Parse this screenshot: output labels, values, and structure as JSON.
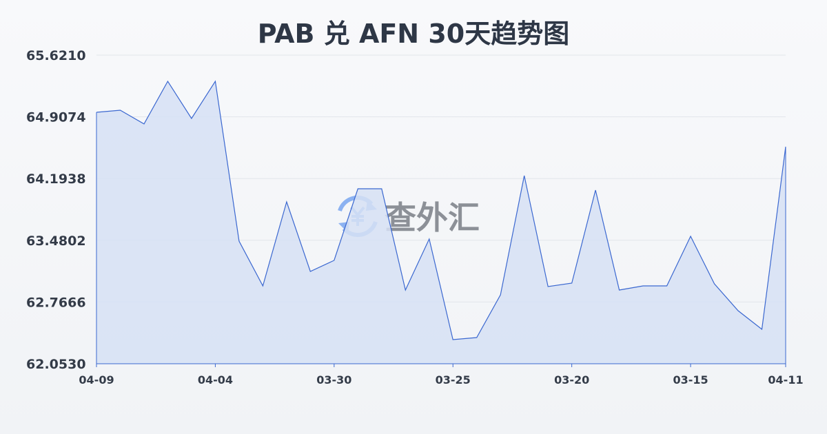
{
  "chart_data": {
    "type": "area",
    "title": "PAB 兑 AFN 30天趋势图",
    "xlabel": "",
    "ylabel": "",
    "ylim": [
      62.053,
      65.621
    ],
    "y_ticks": [
      "65.6210",
      "64.9074",
      "64.1938",
      "63.4802",
      "62.7666",
      "62.0530"
    ],
    "x_tick_labels": [
      {
        "index": 0,
        "label": "04-09"
      },
      {
        "index": 5,
        "label": "04-04"
      },
      {
        "index": 10,
        "label": "03-30"
      },
      {
        "index": 15,
        "label": "03-25"
      },
      {
        "index": 20,
        "label": "03-20"
      },
      {
        "index": 25,
        "label": "03-15"
      },
      {
        "index": 29,
        "label": "04-11"
      }
    ],
    "values": [
      64.96,
      64.984,
      64.825,
      65.318,
      64.888,
      65.318,
      63.471,
      62.953,
      63.925,
      63.12,
      63.248,
      64.076,
      64.076,
      62.905,
      63.495,
      62.332,
      62.356,
      62.849,
      64.227,
      62.945,
      62.985,
      64.06,
      62.905,
      62.953,
      62.953,
      63.526,
      62.977,
      62.666,
      62.451,
      64.562
    ],
    "grid": true,
    "line_color": "#3a67d0",
    "fill_color": "#d6e0f5"
  },
  "watermark": {
    "text": "查外汇",
    "icon": "yen-exchange-icon"
  }
}
